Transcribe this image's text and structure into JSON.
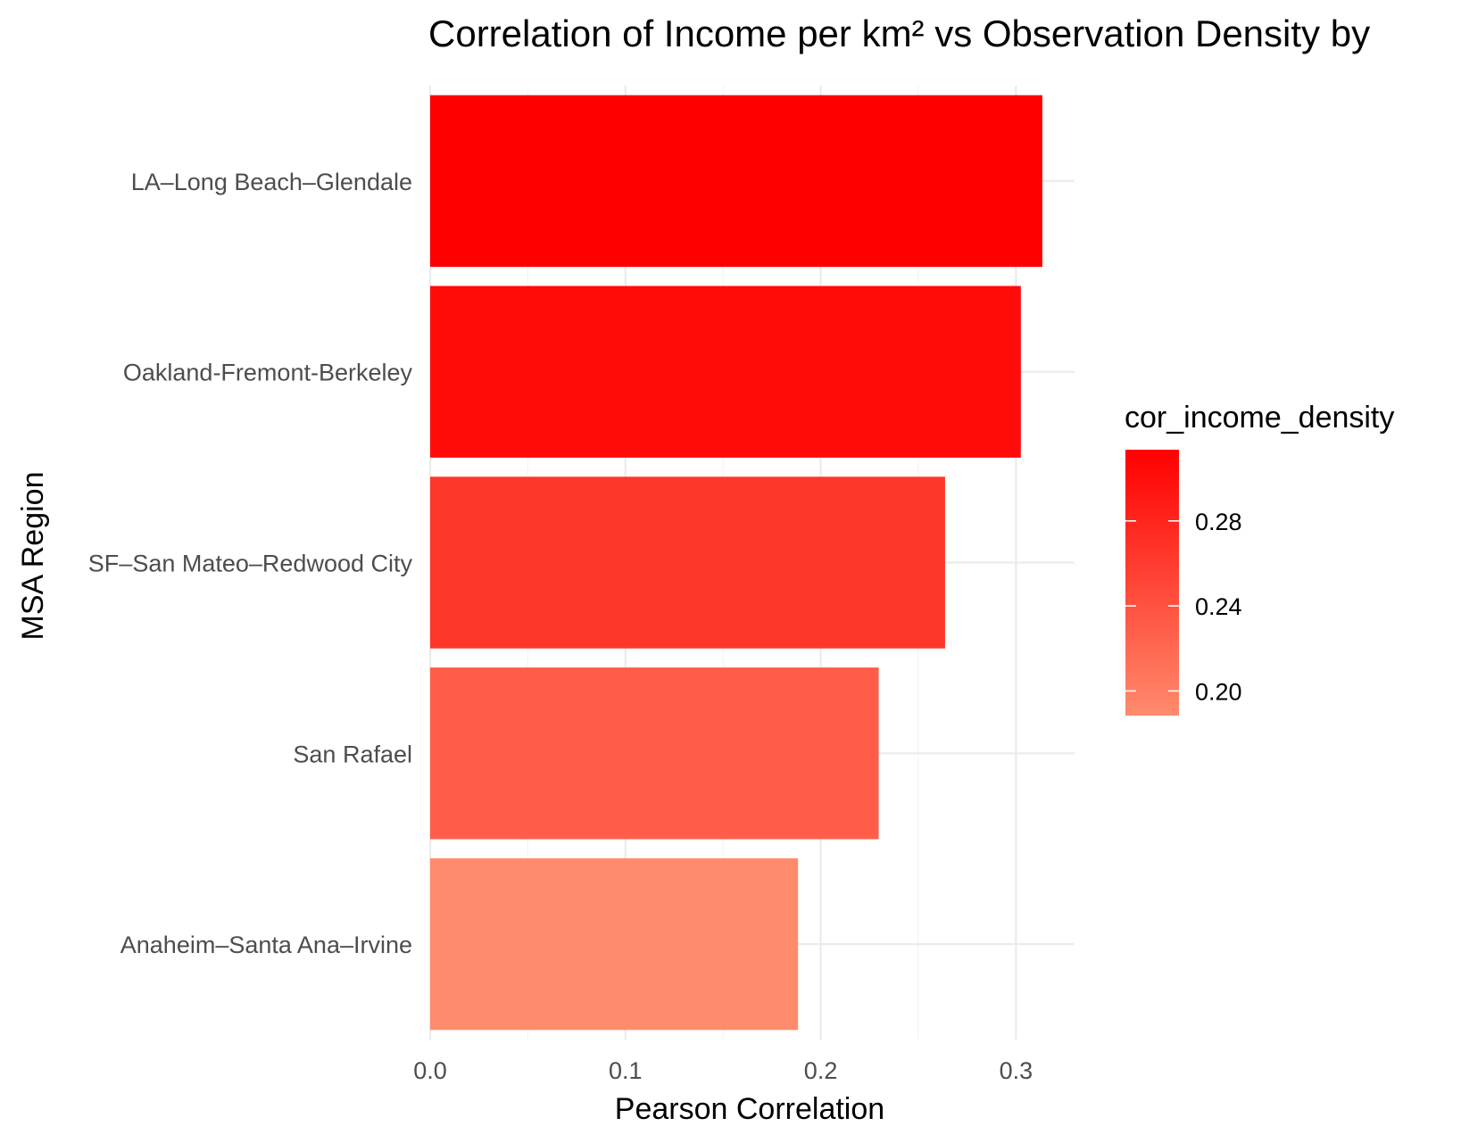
{
  "chart_data": {
    "type": "bar",
    "orientation": "horizontal",
    "title": "Correlation of Income per km² vs Observation Density by",
    "xlabel": "Pearson Correlation",
    "ylabel": "MSA Region",
    "categories": [
      "LA–Long Beach–Glendale",
      "Oakland-Fremont-Berkeley",
      "SF–San Mateo–Redwood City",
      "San Rafael",
      "Anaheim–Santa Ana–Irvine"
    ],
    "values": [
      0.3135,
      0.3025,
      0.2637,
      0.2297,
      0.1884
    ],
    "xlim": [
      0,
      0.33
    ],
    "x_ticks": [
      0.0,
      0.1,
      0.2,
      0.3
    ],
    "x_tick_labels": [
      "0.0",
      "0.1",
      "0.2",
      "0.3"
    ],
    "grid": true,
    "legend": {
      "title": "cor_income_density",
      "position": "right",
      "type": "colorbar",
      "range": [
        0.1884,
        0.3135
      ],
      "ticks": [
        0.2,
        0.24,
        0.28
      ],
      "tick_labels": [
        "0.20",
        "0.24",
        "0.28"
      ],
      "color_low": "#ff8b6d",
      "color_high": "#ff0000"
    }
  }
}
